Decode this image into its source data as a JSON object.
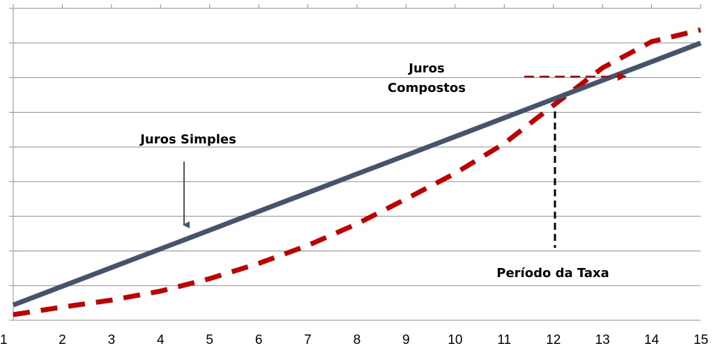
{
  "chart_data": {
    "type": "line",
    "x": [
      1,
      2,
      3,
      4,
      5,
      6,
      7,
      8,
      9,
      10,
      11,
      12,
      13,
      14,
      15
    ],
    "xlim": [
      1,
      15
    ],
    "ylim": [
      0,
      9
    ],
    "grid": "horizontal",
    "series": [
      {
        "name": "Juros Simples",
        "color": "#44546a",
        "style": "solid",
        "values": [
          0.44,
          0.98,
          1.52,
          2.06,
          2.6,
          3.14,
          3.68,
          4.22,
          4.76,
          5.3,
          5.84,
          6.38,
          6.92,
          7.46,
          8.0
        ]
      },
      {
        "name": "Juros Compostos",
        "color": "#c00000",
        "style": "dashed",
        "values": [
          0.16,
          0.38,
          0.58,
          0.84,
          1.2,
          1.64,
          2.16,
          2.78,
          3.5,
          4.24,
          5.1,
          6.2,
          7.28,
          8.04,
          8.38
        ]
      }
    ],
    "annotations": [
      {
        "text": "Juros Simples",
        "arrow": "down",
        "arrow_color": "#44546a",
        "points_to_x": 4.5
      },
      {
        "text": [
          "Juros",
          "Compostos"
        ],
        "arrow": "right",
        "arrow_color": "#c00000"
      },
      {
        "text": "Período da Taxa",
        "marker_line_x": 12
      }
    ]
  }
}
